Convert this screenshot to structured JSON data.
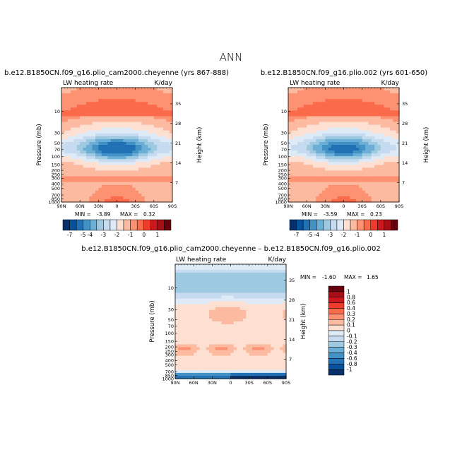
{
  "figure_title": "ANN",
  "colors": {
    "blues": [
      "#08306b",
      "#08519c",
      "#2171b5",
      "#4292c6",
      "#6baed6",
      "#9ecae1",
      "#c6dbef",
      "#deebf7"
    ],
    "reds": [
      "#fee0d2",
      "#fcbba1",
      "#fc9272",
      "#fb6a4a",
      "#ef3b2c",
      "#cb181d",
      "#a50f15",
      "#67000d"
    ],
    "neutral": "#ffffff"
  },
  "chart_data": [
    {
      "type": "heatmap",
      "title": "b.e12.B1850CN.f09_g16.plio_cam2000.cheyenne (yrs 867-888)",
      "variable": "LW heating rate",
      "units": "K/day",
      "xlabel": "",
      "ylabel": "Pressure (mb)",
      "y2label": "Height (km)",
      "x_ticks": [
        "90N",
        "60N",
        "30N",
        "0",
        "30S",
        "60S",
        "90S"
      ],
      "p_ticks": [
        "10",
        "30",
        "50",
        "70",
        "100",
        "150",
        "200",
        "250",
        "300",
        "400",
        "500",
        "700",
        "850",
        "1000"
      ],
      "z_ticks": [
        "35",
        "28",
        "21",
        "14",
        "7"
      ],
      "min_label": "MIN =",
      "min_value": "-3.89",
      "max_label": "MAX =",
      "max_value": "0.32",
      "levels": [
        -7,
        -6,
        -5,
        -4.5,
        -4,
        -3.5,
        -3,
        -2.5,
        -2,
        -1.5,
        -1,
        -0.5,
        0,
        0.5,
        1
      ],
      "colorbar_labels": [
        "-7",
        "-5",
        "-4",
        "-3",
        "-2",
        "-1",
        "0",
        "1"
      ],
      "colorbar_orientation": "horizontal",
      "pattern": "control"
    },
    {
      "type": "heatmap",
      "title": "b.e12.B1850CN.f09_g16.plio.002 (yrs 601-650)",
      "variable": "LW heating rate",
      "units": "K/day",
      "xlabel": "",
      "ylabel": "Pressure (mb)",
      "y2label": "Height (km)",
      "x_ticks": [
        "90N",
        "60N",
        "30N",
        "0",
        "30S",
        "60S",
        "90S"
      ],
      "p_ticks": [
        "10",
        "30",
        "50",
        "70",
        "100",
        "150",
        "200",
        "250",
        "300",
        "400",
        "500",
        "700",
        "850",
        "1000"
      ],
      "z_ticks": [
        "35",
        "28",
        "21",
        "14",
        "7"
      ],
      "min_label": "MIN =",
      "min_value": "-3.59",
      "max_label": "MAX =",
      "max_value": "0.23",
      "levels": [
        -7,
        -6,
        -5,
        -4.5,
        -4,
        -3.5,
        -3,
        -2.5,
        -2,
        -1.5,
        -1,
        -0.5,
        0,
        0.5,
        1
      ],
      "colorbar_labels": [
        "-7",
        "-5",
        "-4",
        "-3",
        "-2",
        "-1",
        "0",
        "1"
      ],
      "colorbar_orientation": "horizontal",
      "pattern": "case"
    },
    {
      "type": "heatmap",
      "title": "b.e12.B1850CN.f09_g16.plio_cam2000.cheyenne – b.e12.B1850CN.f09_g16.plio.002",
      "variable": "LW heating rate",
      "units": "K/day",
      "xlabel": "",
      "ylabel": "Pressure (mb)",
      "y2label": "Height (km)",
      "x_ticks": [
        "90N",
        "60N",
        "30N",
        "0",
        "30S",
        "60S",
        "90S"
      ],
      "p_ticks": [
        "10",
        "30",
        "50",
        "70",
        "100",
        "150",
        "200",
        "250",
        "300",
        "400",
        "500",
        "700",
        "850",
        "1000"
      ],
      "z_ticks": [
        "35",
        "28",
        "21",
        "14",
        "7"
      ],
      "min_label": "MIN =",
      "min_value": "-1.60",
      "max_label": "MAX =",
      "max_value": "1.65",
      "levels": [
        -1,
        -0.8,
        -0.6,
        -0.4,
        -0.3,
        -0.2,
        -0.1,
        0,
        0.1,
        0.2,
        0.3,
        0.4,
        0.6,
        0.8,
        1
      ],
      "colorbar_labels": [
        "1",
        "0.8",
        "0.6",
        "0.4",
        "0.3",
        "0.2",
        "0.1",
        "0",
        "-0.1",
        "-0.2",
        "-0.3",
        "-0.4",
        "-0.6",
        "-0.8",
        "-1"
      ],
      "colorbar_orientation": "vertical",
      "pattern": "difference"
    }
  ]
}
